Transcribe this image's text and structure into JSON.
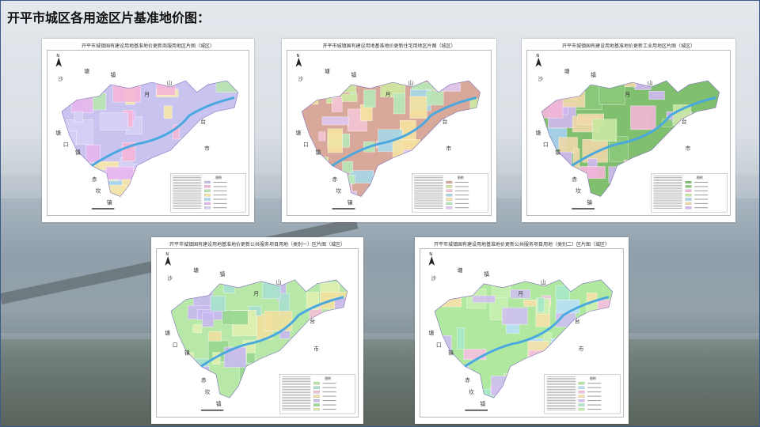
{
  "slide_title": "开平市城区各用途区片基准地价图：",
  "place_labels": [
    "沙",
    "塘",
    "镇",
    "月",
    "山",
    "台",
    "市",
    "塘",
    "口",
    "镇",
    "赤",
    "坎",
    "镇"
  ],
  "north_label": "N",
  "legend_title": "图例",
  "maps": [
    {
      "title": "开平市城镇国有建设用地基准地价更新商服用地区片图（城区）",
      "palette": [
        "#c9c3f0",
        "#f4b6d8",
        "#b8e6b0",
        "#f7e7a8",
        "#a6d8f0",
        "#e8b6f0",
        "#d6d0f5"
      ]
    },
    {
      "title": "开平市城镇国有建设用地基准地价更新住宅用地区片图（城区）",
      "palette": [
        "#d8a89a",
        "#cfe8a0",
        "#f4c6d8",
        "#a8d8e8",
        "#f7e3a0",
        "#b8e8b8",
        "#e0c8f0"
      ]
    },
    {
      "title": "开平市城镇国有建设用地基准地价更新工业用地区片图（城区）",
      "palette": [
        "#7fbf6e",
        "#8cc97a",
        "#f4b6d8",
        "#c8e8a0",
        "#a8d0f0",
        "#f0d8a8",
        "#d0b8f0"
      ]
    },
    {
      "title": "开平市城镇国有建设用地基准地价更新公共服务项目用地（类别一）区片图（城区）",
      "palette": [
        "#b8e8a8",
        "#a8e0d0",
        "#f4c0d8",
        "#f0e0a0",
        "#c8b8f0",
        "#98d890",
        "#e0f0b0"
      ]
    },
    {
      "title": "开平市城镇国有建设用地基准地价更新公共服务项目用地（类别二）区片图（城区）",
      "palette": [
        "#b0e8a0",
        "#b8e0f8",
        "#f4c0e0",
        "#f7e0a8",
        "#d0c0f0",
        "#a8e8c8",
        "#c8f0b0"
      ]
    }
  ]
}
